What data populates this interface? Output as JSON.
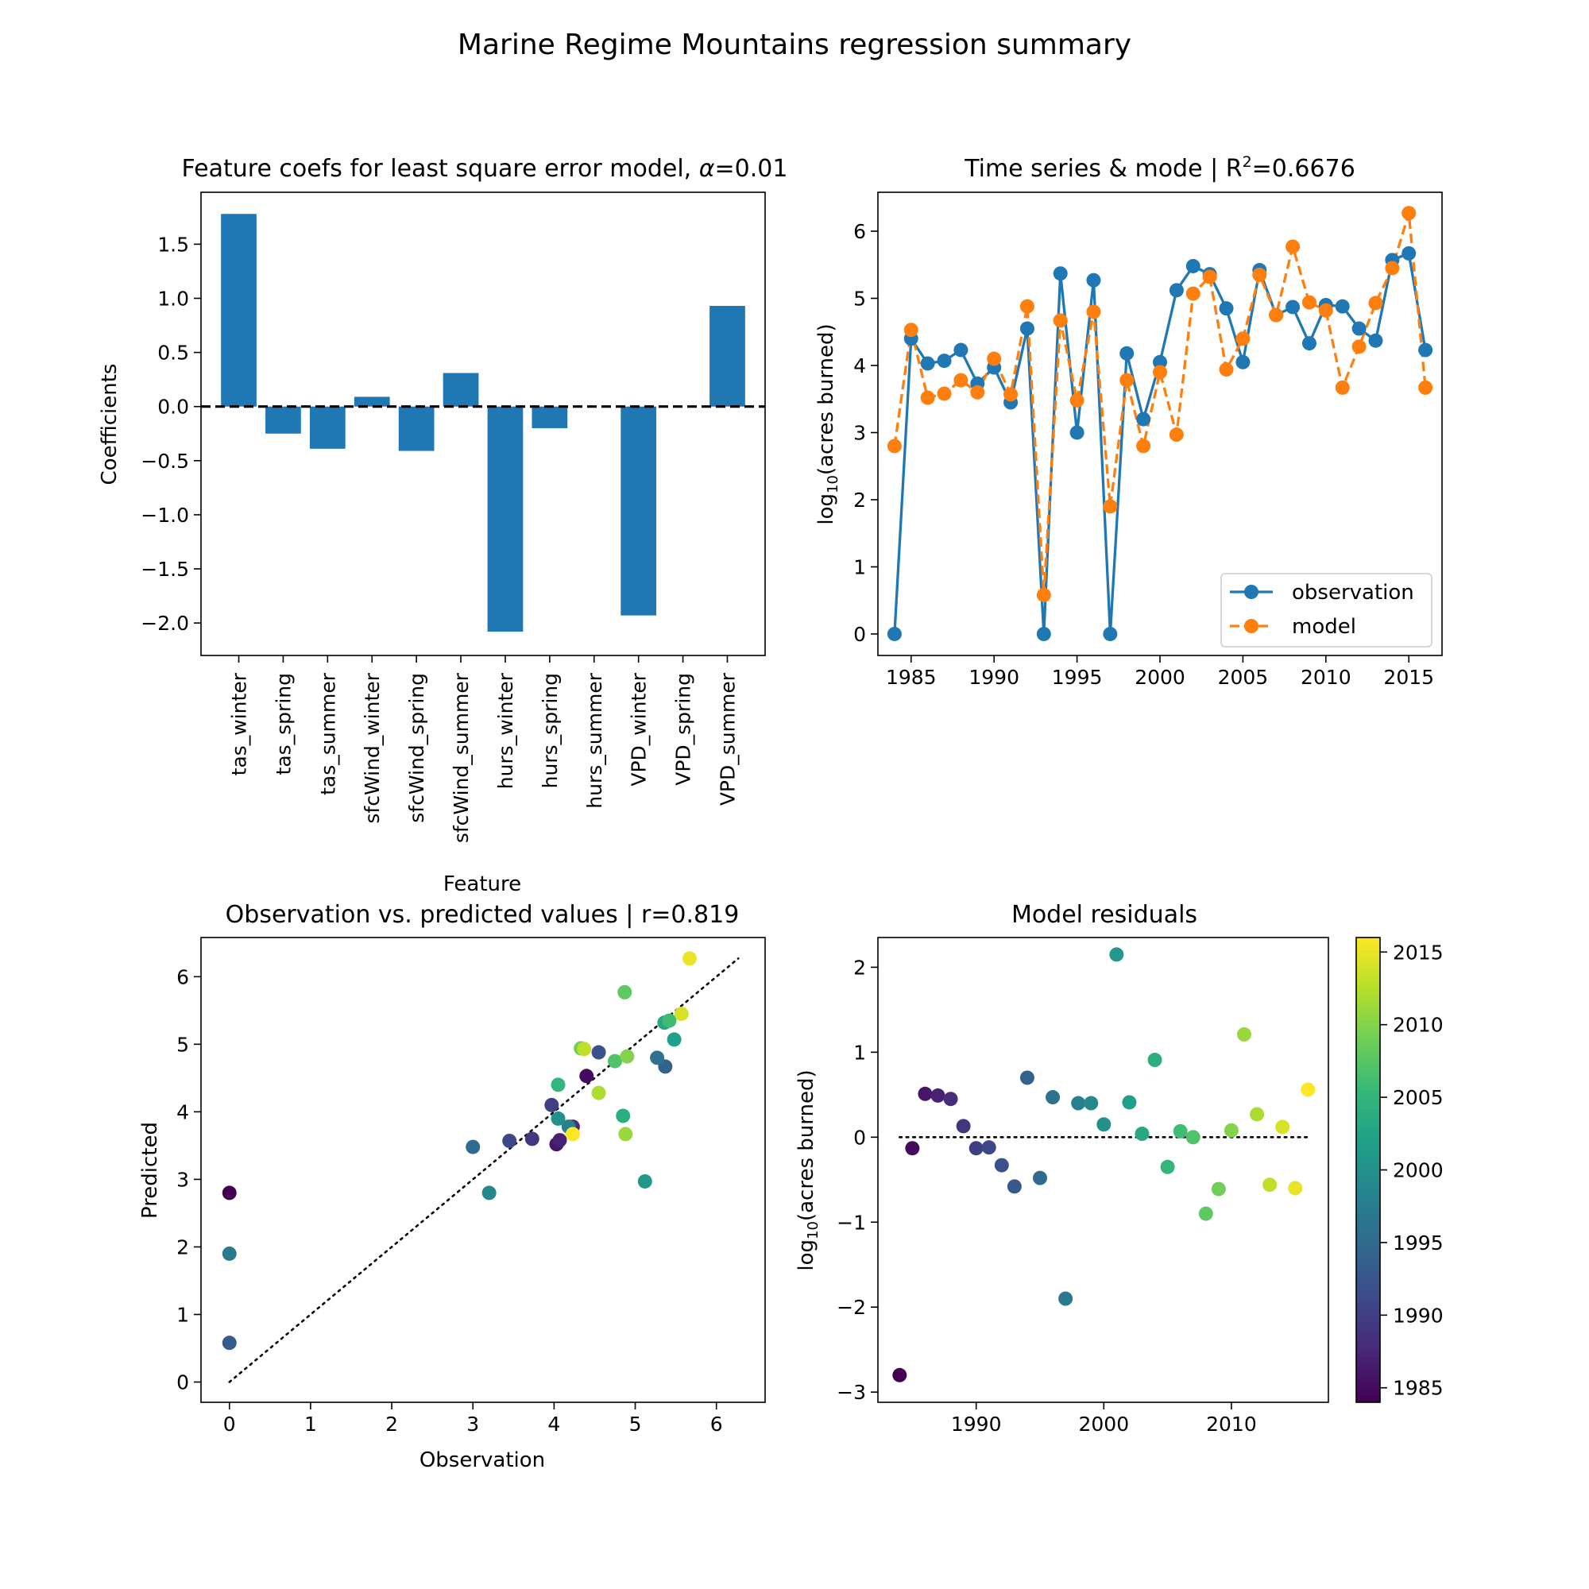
{
  "figure": {
    "suptitle": "Marine Regime Mountains regression summary"
  },
  "colors": {
    "blue": "#1f77b4",
    "orange": "#ff7f0e",
    "viridis": [
      "#440154",
      "#482878",
      "#3e4989",
      "#31688e",
      "#26828e",
      "#1f9e89",
      "#35b779",
      "#6ece58",
      "#b5de2b",
      "#fde725"
    ]
  },
  "chart_data": [
    {
      "type": "bar",
      "title_prefix": "Feature coefs for least square error model, ",
      "title_alpha": "α",
      "title_suffix": "=0.01",
      "xlabel": "Feature",
      "ylabel": "Coefficients",
      "categories": [
        "tas_winter",
        "tas_spring",
        "tas_summer",
        "sfcWind_winter",
        "sfcWind_spring",
        "sfcWind_summer",
        "hurs_winter",
        "hurs_spring",
        "hurs_summer",
        "VPD_winter",
        "VPD_spring",
        "VPD_summer"
      ],
      "values": [
        1.78,
        -0.25,
        -0.39,
        0.09,
        -0.41,
        0.31,
        -2.08,
        -0.2,
        0.0,
        -1.93,
        0.0,
        0.93
      ],
      "ylim": [
        -2.3,
        1.98
      ],
      "yticks": [
        -2.0,
        -1.5,
        -1.0,
        -0.5,
        0.0,
        0.5,
        1.0,
        1.5
      ],
      "ytick_labels": [
        "−2.0",
        "−1.5",
        "−1.0",
        "−0.5",
        "0.0",
        "0.5",
        "1.0",
        "1.5"
      ],
      "zero_line": "dashed",
      "grid": false
    },
    {
      "type": "line",
      "title_prefix": "Time series & mode | R",
      "title_sup": "2",
      "title_suffix": "=0.6676",
      "ylabel_prefix": "log",
      "ylabel_sub": "10",
      "ylabel_suffix": "(acres burned)",
      "x": [
        1984,
        1985,
        1986,
        1987,
        1988,
        1989,
        1990,
        1991,
        1992,
        1993,
        1994,
        1995,
        1996,
        1997,
        1998,
        1999,
        2000,
        2001,
        2002,
        2003,
        2004,
        2005,
        2006,
        2007,
        2008,
        2009,
        2010,
        2011,
        2012,
        2013,
        2014,
        2015,
        2016
      ],
      "series": [
        {
          "name": "observation",
          "style": "solid",
          "values": [
            0.0,
            4.4,
            4.03,
            4.07,
            4.23,
            3.73,
            3.97,
            3.45,
            4.55,
            0.0,
            5.37,
            3.0,
            5.27,
            0.0,
            4.18,
            3.2,
            4.05,
            5.12,
            5.48,
            5.36,
            4.85,
            4.05,
            5.42,
            4.75,
            4.87,
            4.33,
            4.9,
            4.88,
            4.55,
            4.37,
            5.57,
            5.67,
            4.23
          ]
        },
        {
          "name": "model",
          "style": "dashed",
          "values": [
            2.8,
            4.53,
            3.52,
            3.58,
            3.78,
            3.6,
            4.1,
            3.57,
            4.88,
            0.58,
            4.67,
            3.48,
            4.8,
            1.9,
            3.78,
            2.8,
            3.9,
            2.97,
            5.07,
            5.32,
            3.94,
            4.4,
            5.35,
            4.75,
            5.77,
            4.94,
            4.82,
            3.67,
            4.28,
            4.93,
            5.45,
            6.27,
            3.67
          ]
        }
      ],
      "xlim": [
        1983.0,
        2017.0
      ],
      "ylim": [
        -0.32,
        6.58
      ],
      "xticks": [
        1985,
        1990,
        1995,
        2000,
        2005,
        2010,
        2015
      ],
      "yticks": [
        0,
        1,
        2,
        3,
        4,
        5,
        6
      ],
      "legend_position": "lower right",
      "grid": false
    },
    {
      "type": "scatter",
      "title": "Observation vs. predicted values | r=0.819",
      "xlabel": "Observation",
      "ylabel": "Predicted",
      "points": "observation vs. model values from the time series, colored by year (viridis)",
      "xlim": [
        -0.35,
        6.6
      ],
      "ylim": [
        -0.3,
        6.58
      ],
      "xticks": [
        0,
        1,
        2,
        3,
        4,
        5,
        6
      ],
      "yticks": [
        0,
        1,
        2,
        3,
        4,
        5,
        6
      ],
      "reference_line": "dotted 1:1 line",
      "grid": false
    },
    {
      "type": "scatter",
      "title": "Model residuals",
      "ylabel_prefix": "log",
      "ylabel_sub": "10",
      "ylabel_suffix": "(acres burned)",
      "points": "year vs. observation − model, colored by year (viridis)",
      "xlim": [
        1982.3,
        2017.6
      ],
      "ylim": [
        -3.12,
        2.35
      ],
      "xticks": [
        1990,
        2000,
        2010
      ],
      "yticks": [
        -3,
        -2,
        -1,
        0,
        1,
        2
      ],
      "ytick_labels": [
        "−3",
        "−2",
        "−1",
        "0",
        "1",
        "2"
      ],
      "zero_line": "dotted",
      "colorbar": {
        "range": [
          1984,
          2016
        ],
        "ticks": [
          1985,
          1990,
          1995,
          2000,
          2005,
          2010,
          2015
        ],
        "colormap": "viridis"
      },
      "grid": false
    }
  ]
}
